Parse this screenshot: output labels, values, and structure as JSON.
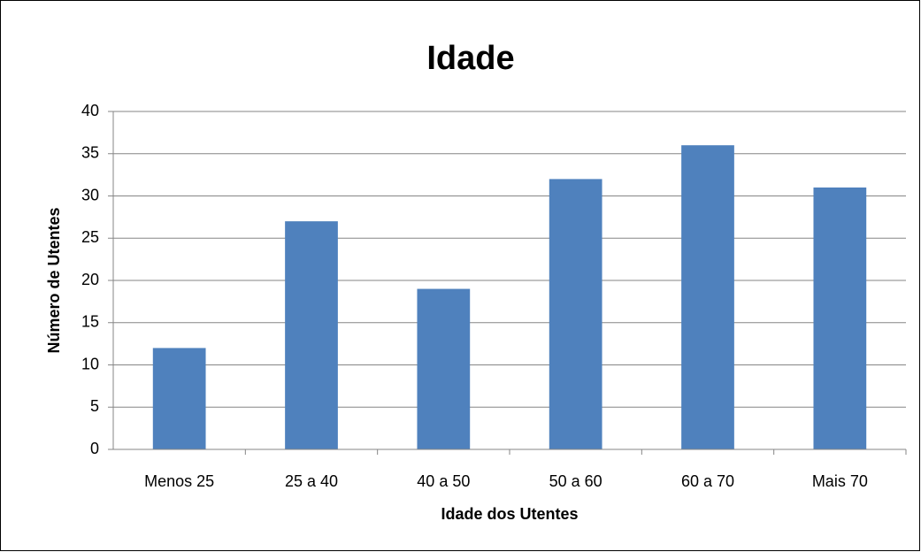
{
  "chart_data": {
    "type": "bar",
    "title": "Idade",
    "x_label": "Idade dos Utentes",
    "y_label": "Número de Utentes",
    "categories": [
      "Menos 25",
      "25 a 40",
      "40 a 50",
      "50 a 60",
      "60 a 70",
      "Mais 70"
    ],
    "values": [
      12,
      27,
      19,
      32,
      36,
      31
    ],
    "color": "#4f81bd",
    "ylim": [
      0,
      40
    ],
    "yticks": [
      0,
      5,
      10,
      15,
      20,
      25,
      30,
      35,
      40
    ],
    "grid": true
  }
}
